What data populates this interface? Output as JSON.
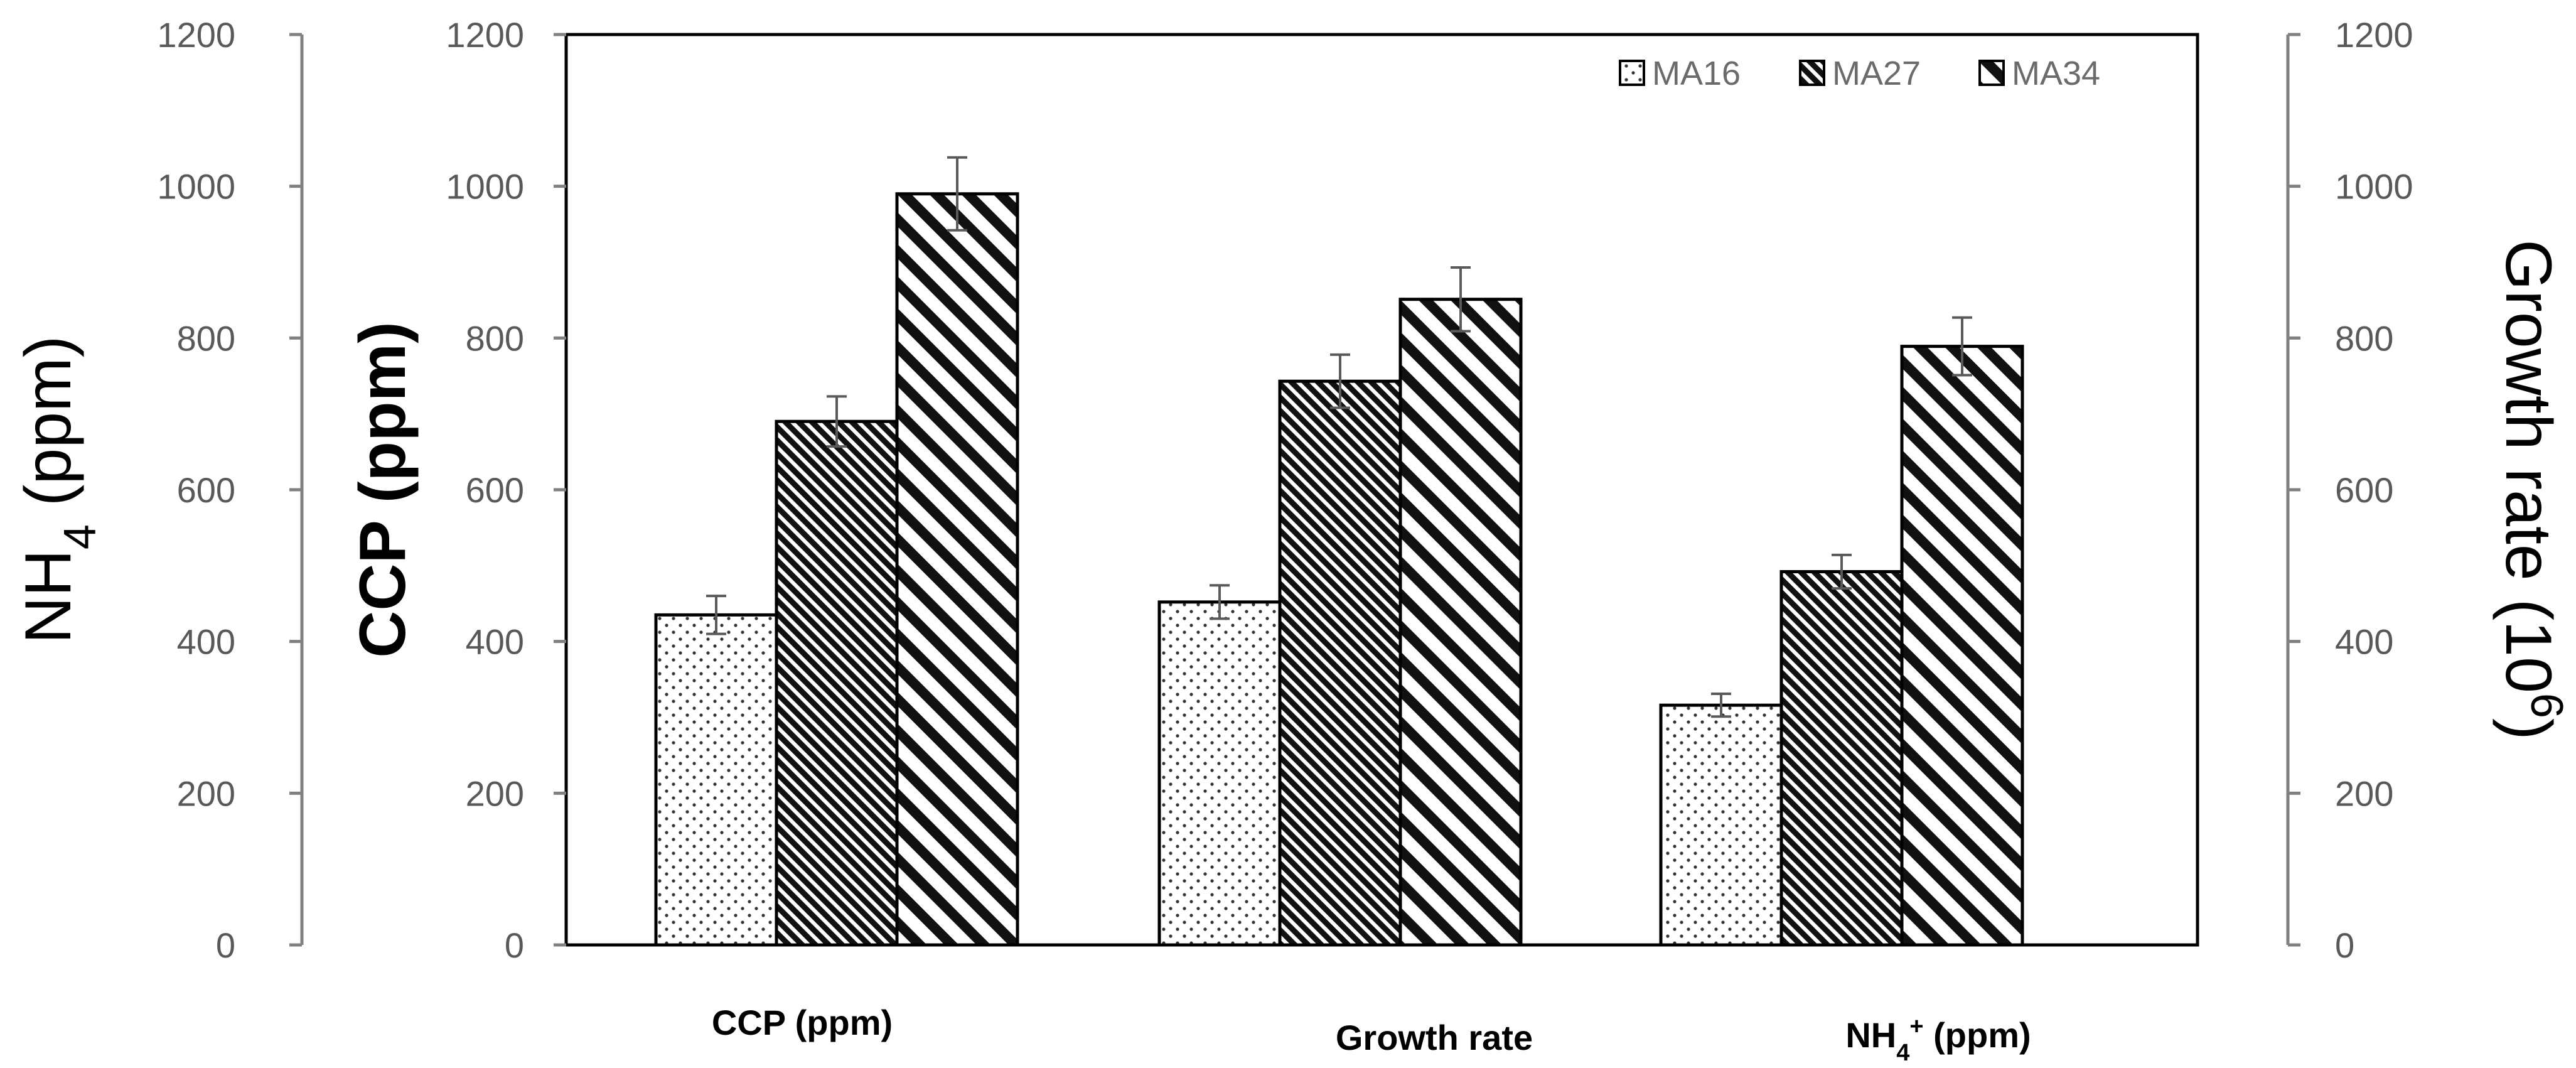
{
  "chart_data": {
    "type": "bar",
    "categories": [
      "CCP (ppm)",
      "Growth rate",
      "NH4+ (ppm)"
    ],
    "series": [
      {
        "name": "MA16",
        "values": [
          435,
          452,
          316
        ],
        "errors": [
          25,
          22,
          15
        ]
      },
      {
        "name": "MA27",
        "values": [
          690,
          743,
          492
        ],
        "errors": [
          33,
          35,
          22
        ]
      },
      {
        "name": "MA34",
        "values": [
          990,
          851,
          789
        ],
        "errors": [
          48,
          42,
          38
        ]
      }
    ],
    "category_labels": {
      "ccp": "CCP (ppm)",
      "growth": "Growth rate",
      "nh4_base": "NH",
      "nh4_sub": "4",
      "nh4_sup": "+",
      "nh4_unit": " (ppm)"
    },
    "axes": {
      "left_outer": {
        "label_base": "NH",
        "label_sub": "4",
        "label_unit": " (ppm)"
      },
      "left_inner": {
        "label": "CCP (ppm)"
      },
      "right": {
        "label_base": "Growth rate (10",
        "label_sup": "6",
        "label_close": ")"
      }
    },
    "ylim": [
      0,
      1200
    ],
    "yticks": [
      0,
      200,
      400,
      600,
      800,
      1000,
      1200
    ],
    "legend_position": "top-right",
    "grid": false
  }
}
